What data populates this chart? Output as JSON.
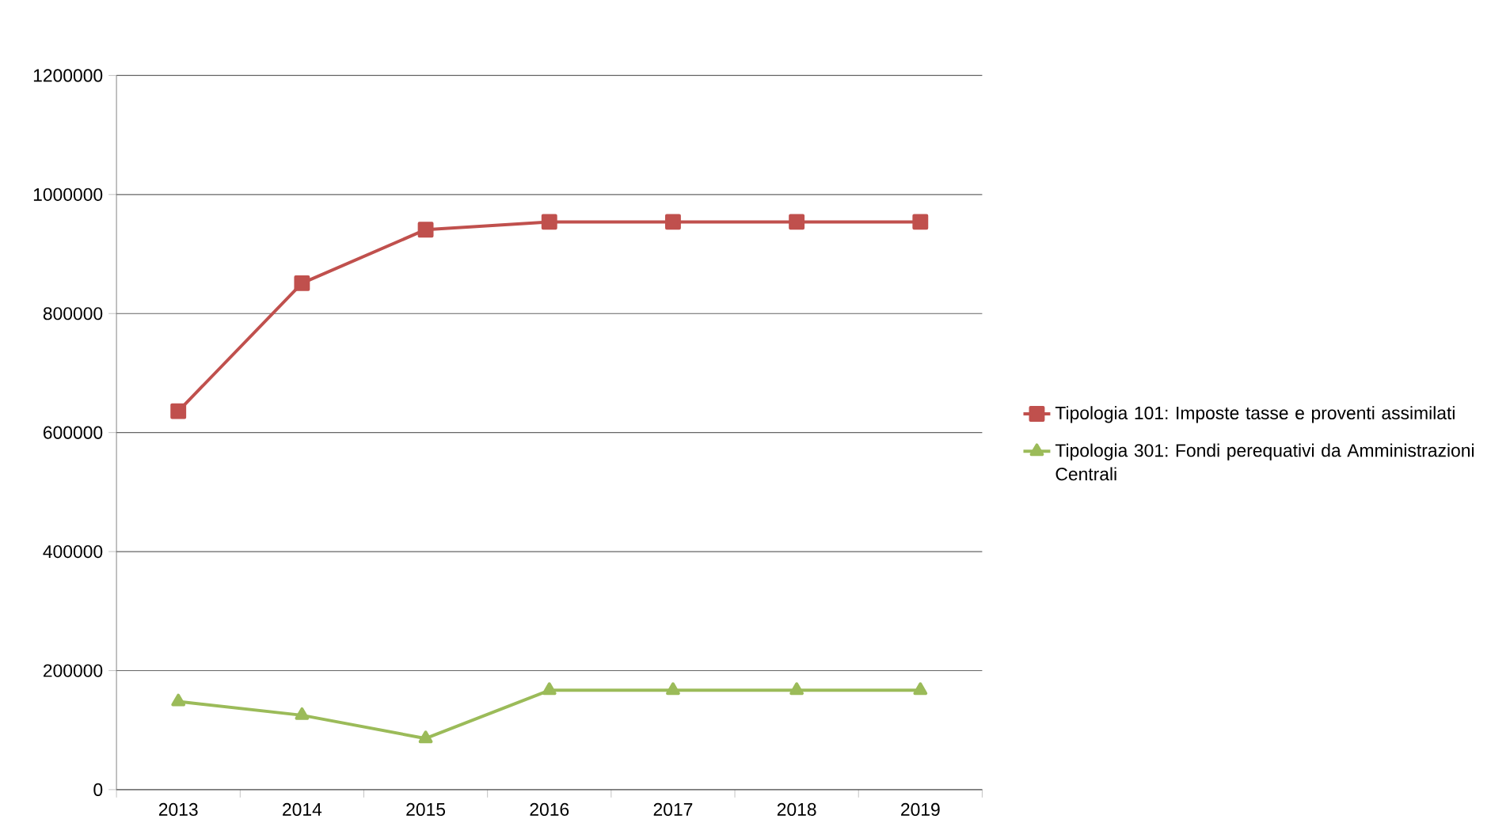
{
  "chart_data": {
    "type": "line",
    "categories": [
      "2013",
      "2014",
      "2015",
      "2016",
      "2017",
      "2018",
      "2019"
    ],
    "series": [
      {
        "name": "Tipologia 101: Imposte tasse e proventi assimilati",
        "color": "#c0504d",
        "marker": "square",
        "values": [
          636000,
          851000,
          941000,
          954000,
          954000,
          954000,
          954000
        ]
      },
      {
        "name": "Tipologia 301: Fondi perequativi da Amministrazioni Centrali",
        "color": "#9bbb59",
        "marker": "triangle",
        "values": [
          148000,
          125000,
          86000,
          167000,
          167000,
          167000,
          167000
        ]
      }
    ],
    "ylim": [
      0,
      1200000
    ],
    "yticks": [
      0,
      200000,
      400000,
      600000,
      800000,
      1000000,
      1200000
    ],
    "grid": "y",
    "legend": "right",
    "line_style": "solid"
  }
}
